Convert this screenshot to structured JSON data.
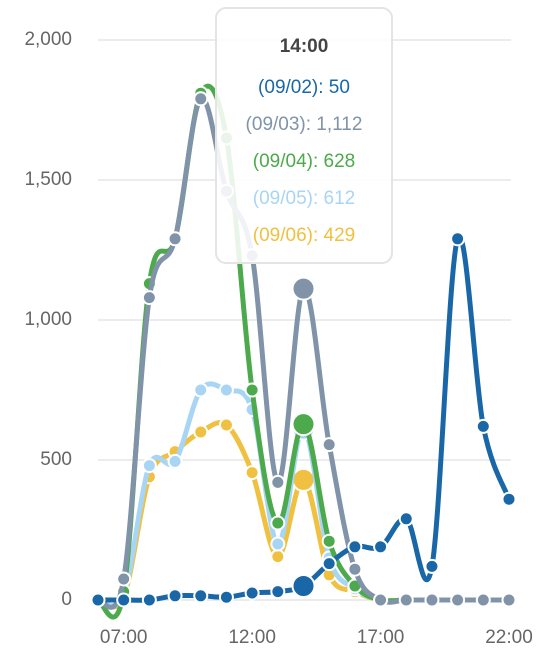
{
  "chart_data": {
    "type": "line",
    "categories": [
      null,
      "07:00",
      null,
      null,
      null,
      null,
      "12:00",
      null,
      null,
      null,
      null,
      "17:00",
      null,
      null,
      null,
      null,
      "22:00"
    ],
    "series": [
      {
        "color": "#f0c040",
        "values": [
          0,
          10,
          440,
          530,
          600,
          625,
          455,
          155,
          429,
          90,
          30,
          0,
          0,
          0,
          0,
          0,
          0
        ]
      },
      {
        "color": "#a9d5f5",
        "values": [
          0,
          20,
          480,
          495,
          750,
          750,
          680,
          200,
          612,
          150,
          40,
          0,
          0,
          0,
          0,
          0,
          0
        ]
      },
      {
        "color": "#4caa4c",
        "values": [
          0,
          30,
          1130,
          1290,
          1810,
          1650,
          750,
          275,
          628,
          210,
          50,
          0,
          0,
          0,
          0,
          0,
          0
        ]
      },
      {
        "color": "#8093a8",
        "values": [
          0,
          75,
          1080,
          1290,
          1790,
          1460,
          1230,
          420,
          1112,
          555,
          110,
          0,
          0,
          0,
          0,
          0,
          0
        ]
      },
      {
        "color": "#1a67a8",
        "values": [
          0,
          0,
          0,
          15,
          15,
          10,
          25,
          30,
          50,
          130,
          190,
          190,
          290,
          120,
          1290,
          620,
          360
        ]
      }
    ],
    "ylim": [
      0,
      2000
    ],
    "yticks": [
      0,
      500,
      {
        "value": 1000,
        "label": "1,000"
      },
      {
        "value": 1500,
        "label": "1,500"
      },
      {
        "value": 2000,
        "label": "2,000"
      }
    ],
    "grid": true,
    "active_index": 8,
    "tooltip": {
      "title": "14:00",
      "items": [
        "(09/02): 50",
        "(09/03): 1,112",
        "(09/04): 628",
        "(09/05): 612",
        "(09/06): 429"
      ]
    }
  }
}
